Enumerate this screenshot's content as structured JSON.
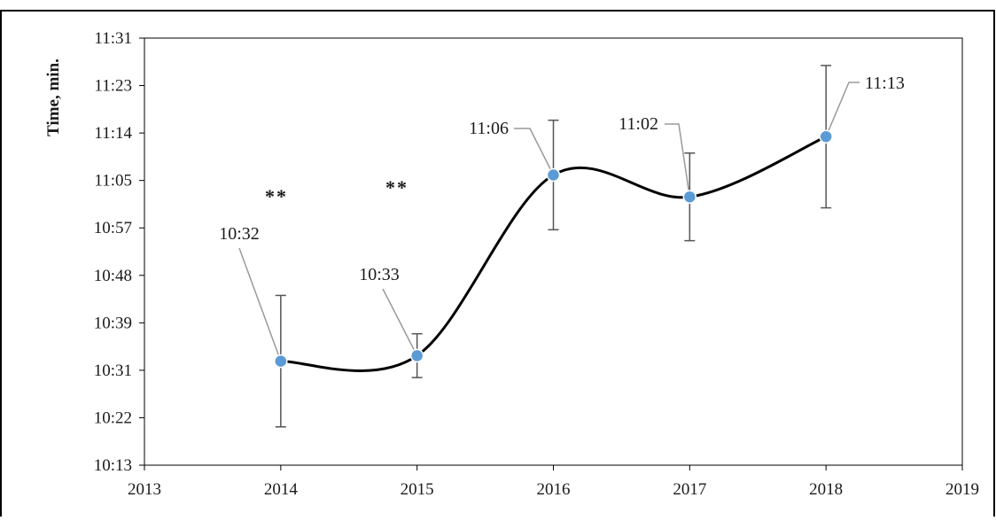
{
  "chart_data": {
    "type": "line",
    "ylabel": "Time, min.",
    "xlabel": "",
    "title": "",
    "x_ticks": [
      "2013",
      "2014",
      "2015",
      "2016",
      "2017",
      "2018",
      "2019"
    ],
    "y_ticks": [
      "10:13",
      "10:22",
      "10:31",
      "10:39",
      "10:48",
      "10:57",
      "11:05",
      "11:14",
      "11:23",
      "11:31"
    ],
    "xlim": [
      2013,
      2019
    ],
    "ylim_seconds": [
      613,
      691
    ],
    "grid": false,
    "smooth": true,
    "marker_color": "#5b9bd5",
    "line_color": "#000000",
    "points": [
      {
        "x": 2014,
        "y": "10:32",
        "label": "10:32",
        "err_low": "10:20",
        "err_high": "10:44",
        "note": "**"
      },
      {
        "x": 2015,
        "y": "10:33",
        "label": "10:33",
        "err_low": "10:29",
        "err_high": "10:37",
        "note": "**"
      },
      {
        "x": 2016,
        "y": "11:06",
        "label": "11:06",
        "err_low": "10:56",
        "err_high": "11:16",
        "note": ""
      },
      {
        "x": 2017,
        "y": "11:02",
        "label": "11:02",
        "err_low": "10:54",
        "err_high": "11:10",
        "note": ""
      },
      {
        "x": 2018,
        "y": "11:13",
        "label": "11:13",
        "err_low": "11:00",
        "err_high": "11:26",
        "note": ""
      }
    ]
  }
}
